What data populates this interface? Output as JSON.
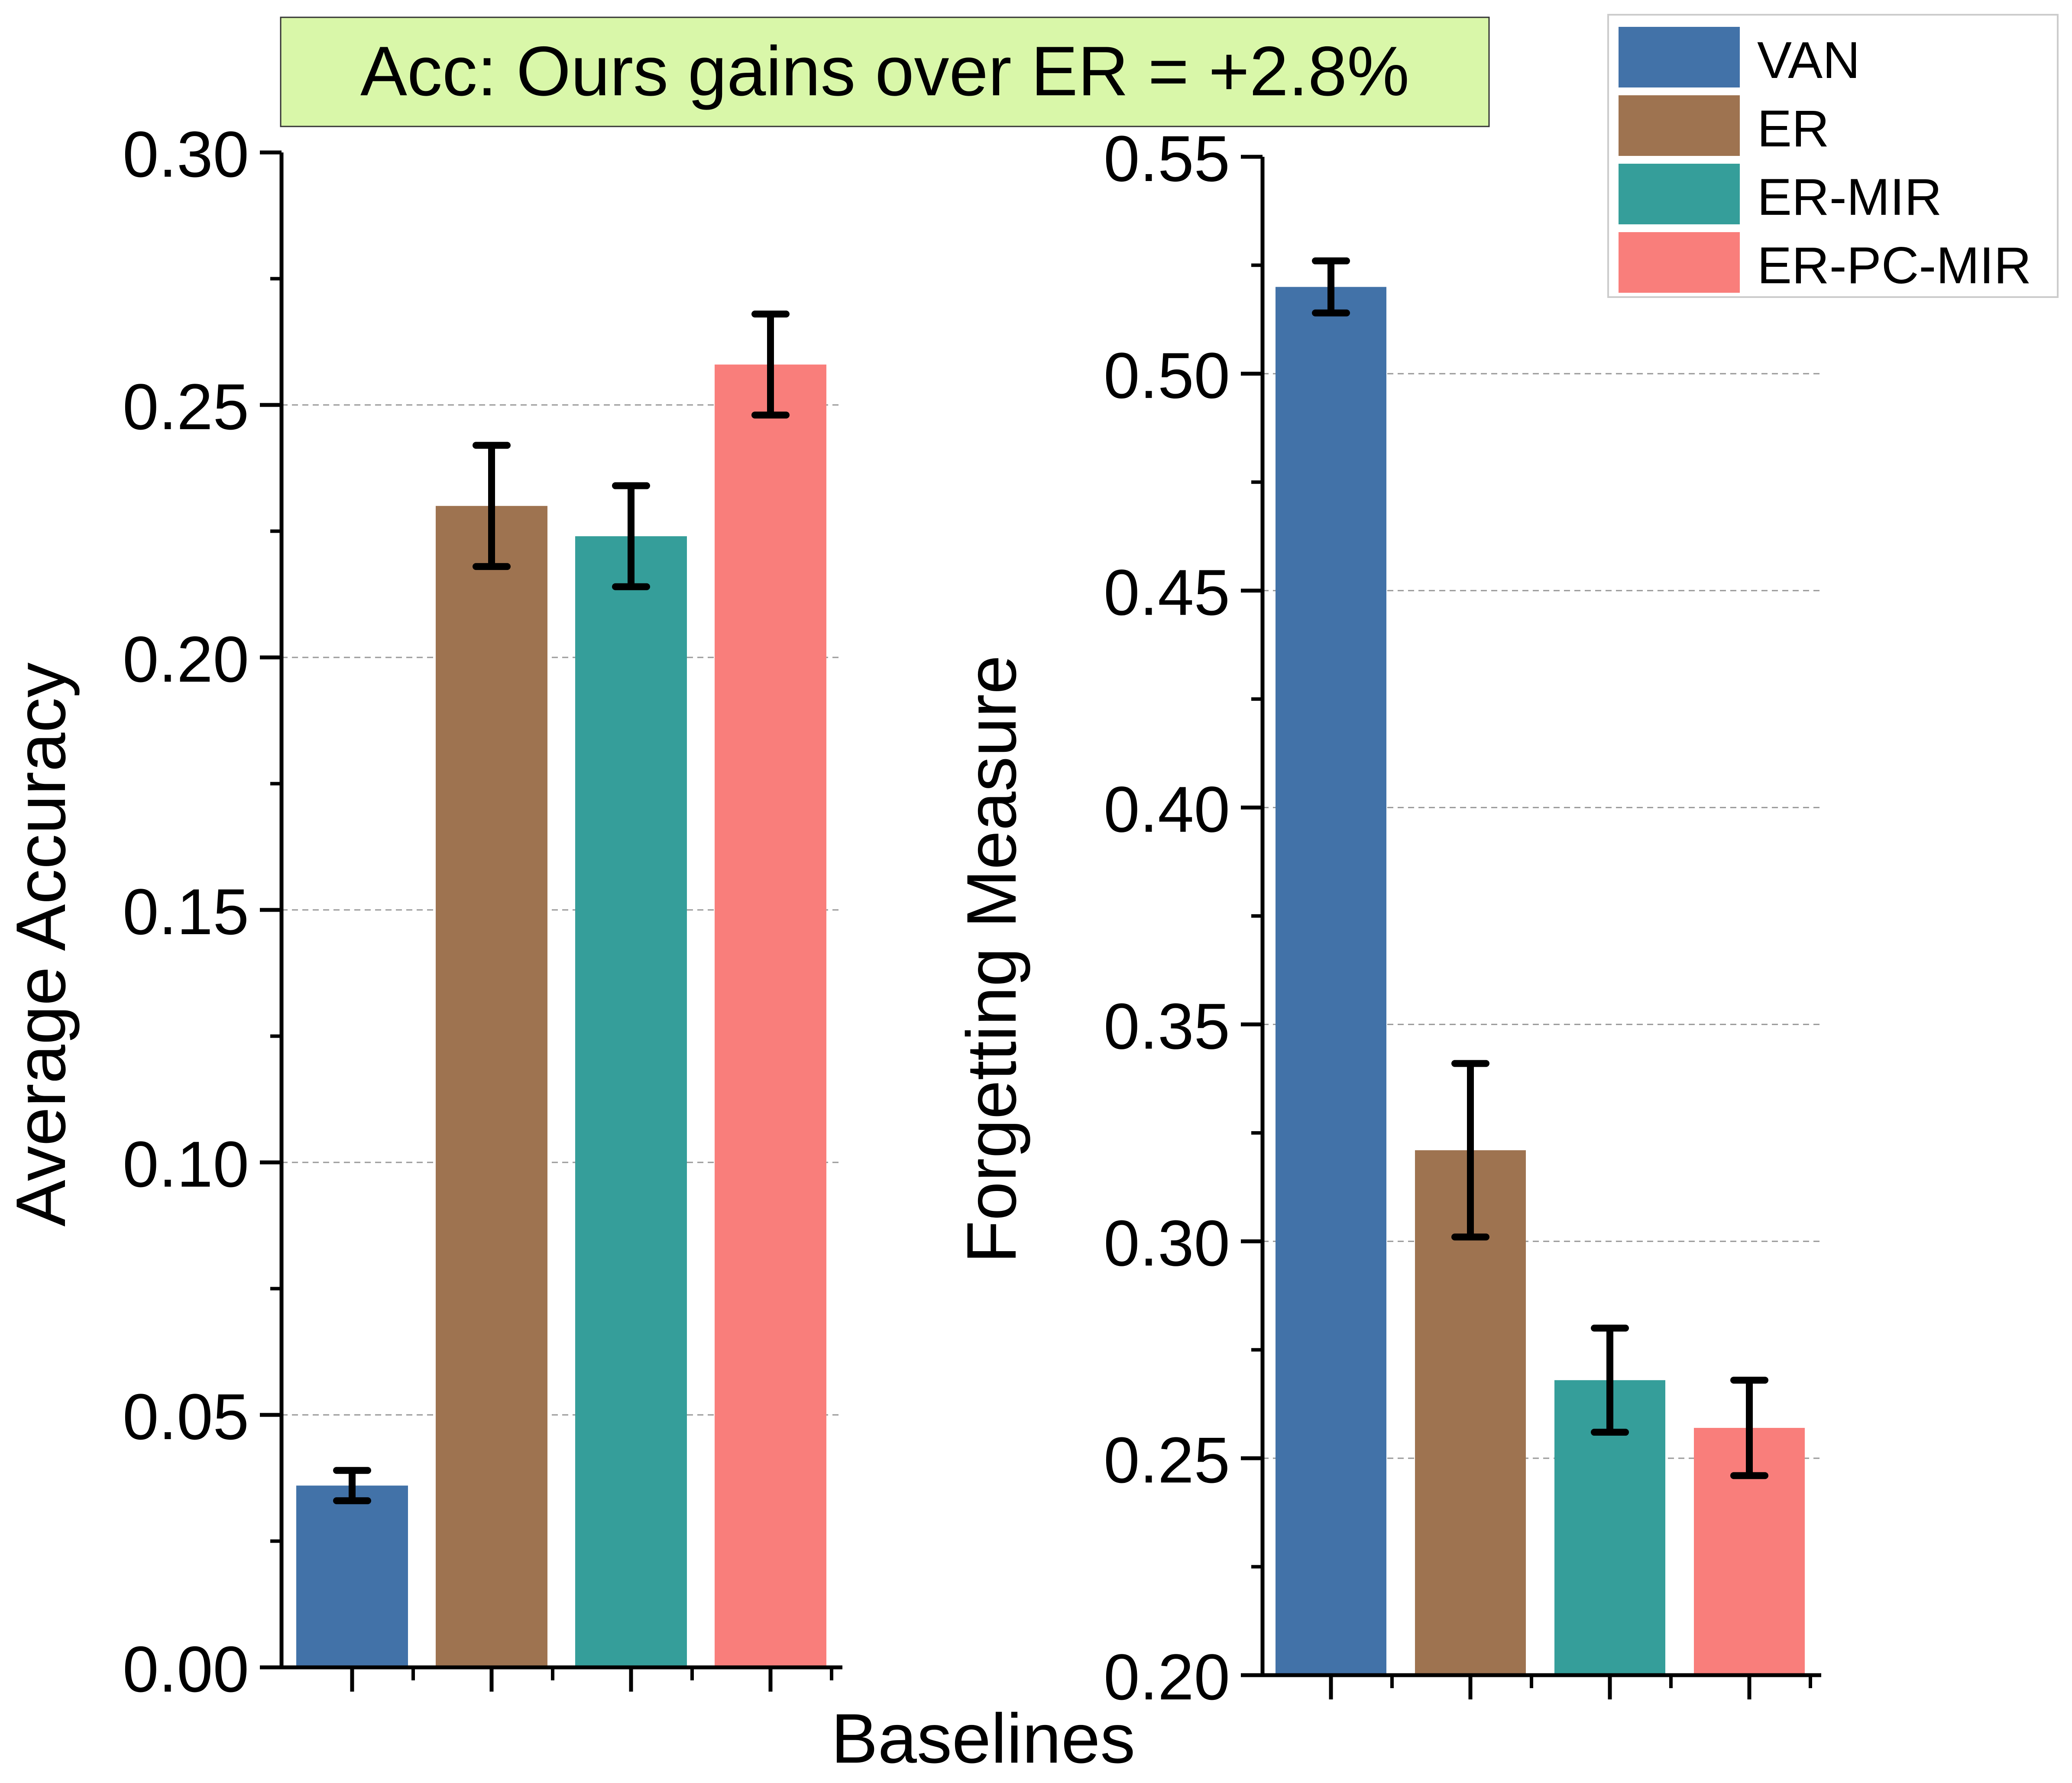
{
  "annotation": {
    "text": "Acc: Ours gains over ER = +2.8%",
    "background": "#d9f7a9"
  },
  "shared_xlabel": "Baselines",
  "legend": {
    "placement": "top-right",
    "items": [
      {
        "label": "VAN",
        "color": "#4272a8"
      },
      {
        "label": "ER",
        "color": "#9e7350"
      },
      {
        "label": "ER-MIR",
        "color": "#359e9a"
      },
      {
        "label": "ER-PC-MIR",
        "color": "#f97e7b"
      }
    ]
  },
  "chart_data": [
    {
      "type": "bar",
      "categories": [
        "VAN",
        "ER",
        "ER-MIR",
        "ER-PC-MIR"
      ],
      "values": [
        0.036,
        0.23,
        0.224,
        0.258
      ],
      "errors": [
        0.003,
        0.012,
        0.01,
        0.01
      ],
      "colors": [
        "#4272a8",
        "#9e7350",
        "#359e9a",
        "#f97e7b"
      ],
      "ylabel": "Average Accuracy",
      "ylim": [
        0.0,
        0.3
      ],
      "yticks": [
        "0.00",
        "0.05",
        "0.10",
        "0.15",
        "0.20",
        "0.25",
        "0.30"
      ],
      "grid": true
    },
    {
      "type": "bar",
      "categories": [
        "VAN",
        "ER",
        "ER-MIR",
        "ER-PC-MIR"
      ],
      "values": [
        0.52,
        0.321,
        0.268,
        0.257
      ],
      "errors": [
        0.006,
        0.02,
        0.012,
        0.011
      ],
      "colors": [
        "#4272a8",
        "#9e7350",
        "#359e9a",
        "#f97e7b"
      ],
      "ylabel": "Forgetting Measure",
      "ylim": [
        0.2,
        0.55
      ],
      "yticks": [
        "0.20",
        "0.25",
        "0.30",
        "0.35",
        "0.40",
        "0.45",
        "0.50",
        "0.55"
      ],
      "grid": true
    }
  ]
}
